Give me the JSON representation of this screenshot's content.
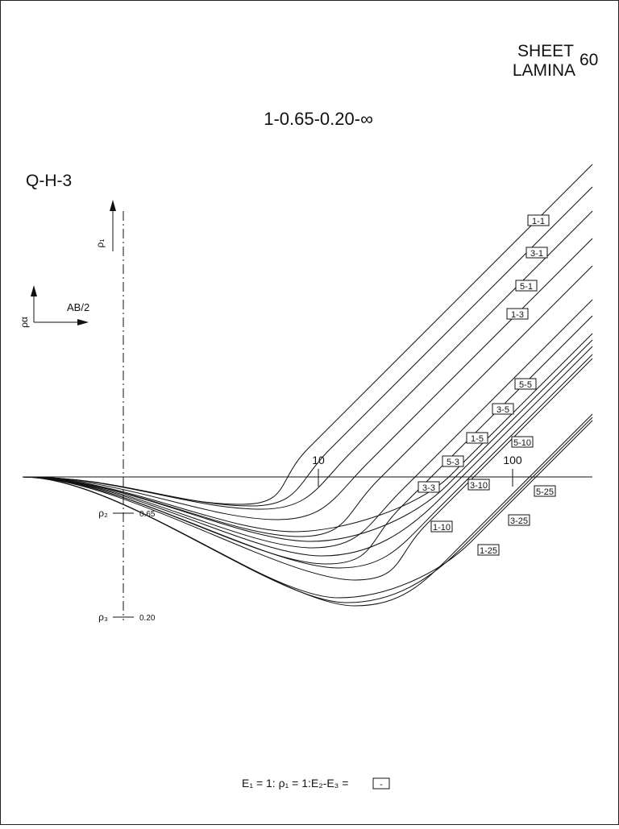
{
  "header": {
    "sheet": "SHEET",
    "lamina": "LAMINA",
    "number": "60"
  },
  "title": "1-0.65-0.20-∞",
  "model": "Q-H-3",
  "axis": {
    "rho_top": "ρ₁",
    "rho_alpha": "ρα",
    "ab2": "AB/2",
    "x10": "10",
    "x100": "100",
    "rho2": "ρ₂",
    "rho2_value": "0.65",
    "rho3": "ρ₃",
    "rho3_value": "0.20"
  },
  "curves": [
    {
      "label": "1-1"
    },
    {
      "label": "3-1"
    },
    {
      "label": "5-1"
    },
    {
      "label": "1-3"
    },
    {
      "label": "5-5"
    },
    {
      "label": "3-5"
    },
    {
      "label": "1-5"
    },
    {
      "label": "5-10"
    },
    {
      "label": "5-3"
    },
    {
      "label": "3-10"
    },
    {
      "label": "3-3"
    },
    {
      "label": "1-10"
    },
    {
      "label": "5-25"
    },
    {
      "label": "3-25"
    },
    {
      "label": "1-25"
    }
  ],
  "footer": {
    "text": "E₁ = 1: ρ₁ = 1:E₂-E₃ =",
    "box": "-"
  }
}
